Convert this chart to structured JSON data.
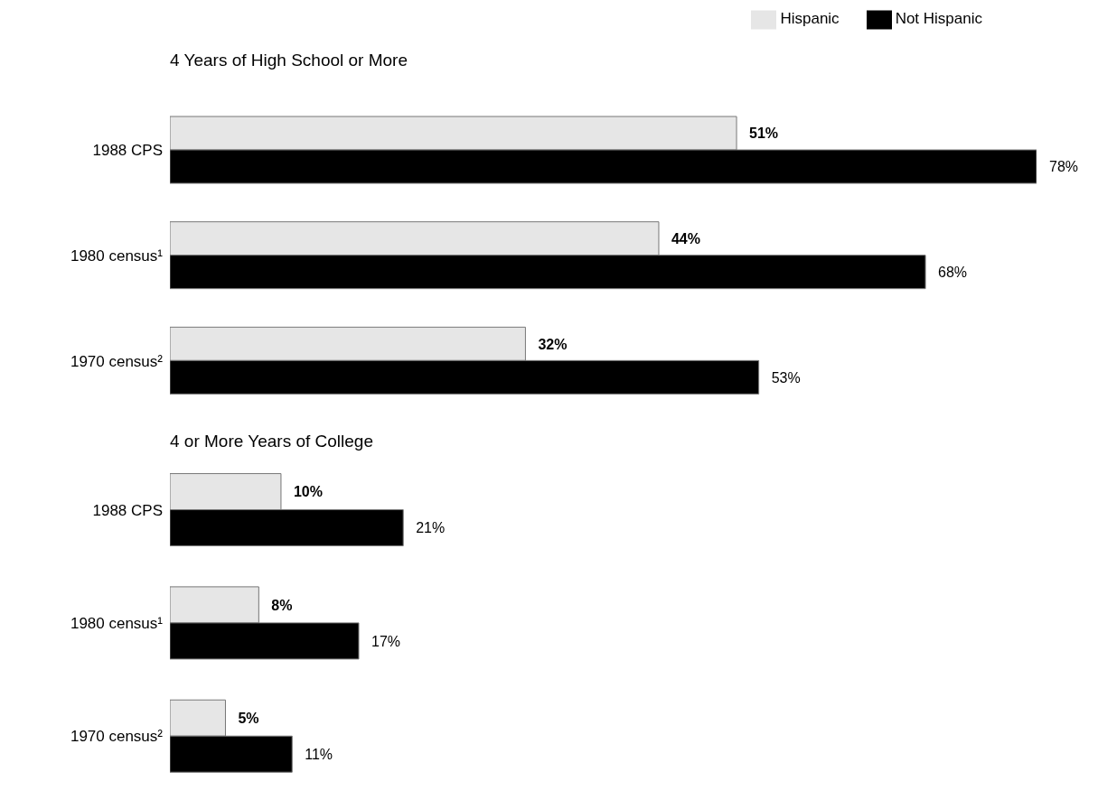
{
  "chart_data": [
    {
      "type": "bar",
      "orientation": "horizontal",
      "title": "4 Years of High School or More",
      "categories": [
        "1988 CPS",
        "1980 census¹",
        "1970 census²"
      ],
      "legend": "top right",
      "series": [
        {
          "name": "Hispanic",
          "color": "#e6e6e6",
          "values": [
            51,
            44,
            32
          ],
          "value_labels": [
            "51%",
            "44%",
            "32%"
          ]
        },
        {
          "name": "Not Hispanic",
          "color": "#000000",
          "values": [
            78,
            68,
            53
          ],
          "value_labels": [
            "78%",
            "68%",
            "53%"
          ]
        }
      ]
    },
    {
      "type": "bar",
      "orientation": "horizontal",
      "title": "4 or More Years of College",
      "categories": [
        "1988 CPS",
        "1980 census¹",
        "1970 census²"
      ],
      "series": [
        {
          "color": "#e6e6e6",
          "values": [
            10,
            8,
            5
          ],
          "value_labels": [
            "10%",
            "8%",
            "5%"
          ]
        },
        {
          "color": "#000000",
          "values": [
            21,
            17,
            11
          ],
          "value_labels": [
            "21%",
            "17%",
            "11%"
          ]
        }
      ]
    }
  ]
}
